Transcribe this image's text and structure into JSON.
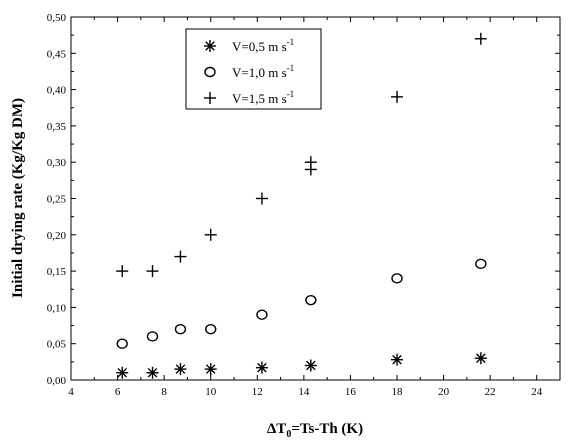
{
  "chart_data": {
    "type": "scatter",
    "xlabel": {
      "base": "ΔT",
      "sub": "0",
      "rest": "=Ts-Th (K)"
    },
    "ylabel": "Initial drying rate (Kg/Kg DM)",
    "xlim": [
      4,
      25
    ],
    "ylim": [
      0,
      0.5
    ],
    "x_ticks": [
      "4",
      "6",
      "8",
      "10",
      "12",
      "14",
      "16",
      "18",
      "20",
      "22",
      "24"
    ],
    "y_ticks": [
      "0,00",
      "0,05",
      "0,10",
      "0,15",
      "0,20",
      "0,25",
      "0,30",
      "0,35",
      "0,40",
      "0,45",
      "0,50"
    ],
    "grid": false,
    "legend_position": "top-center",
    "series": [
      {
        "name": "V=0,5 m s",
        "sup": "-1",
        "marker": "asterisk",
        "points": [
          [
            6.2,
            0.01
          ],
          [
            7.5,
            0.01
          ],
          [
            8.7,
            0.015
          ],
          [
            10.0,
            0.015
          ],
          [
            12.2,
            0.017
          ],
          [
            14.3,
            0.02
          ],
          [
            18.0,
            0.028
          ],
          [
            21.6,
            0.03
          ]
        ]
      },
      {
        "name": "V=1,0 m s",
        "sup": "-1",
        "marker": "circle",
        "points": [
          [
            6.2,
            0.05
          ],
          [
            7.5,
            0.06
          ],
          [
            8.7,
            0.07
          ],
          [
            10.0,
            0.07
          ],
          [
            12.2,
            0.09
          ],
          [
            14.3,
            0.11
          ],
          [
            18.0,
            0.14
          ],
          [
            21.6,
            0.16
          ]
        ]
      },
      {
        "name": "V=1,5 m s",
        "sup": "-1",
        "marker": "plus",
        "points": [
          [
            6.2,
            0.15
          ],
          [
            7.5,
            0.15
          ],
          [
            8.7,
            0.17
          ],
          [
            10.0,
            0.2
          ],
          [
            12.2,
            0.25
          ],
          [
            14.3,
            0.29
          ],
          [
            14.3,
            0.3
          ],
          [
            18.0,
            0.39
          ],
          [
            21.6,
            0.47
          ]
        ]
      }
    ]
  }
}
